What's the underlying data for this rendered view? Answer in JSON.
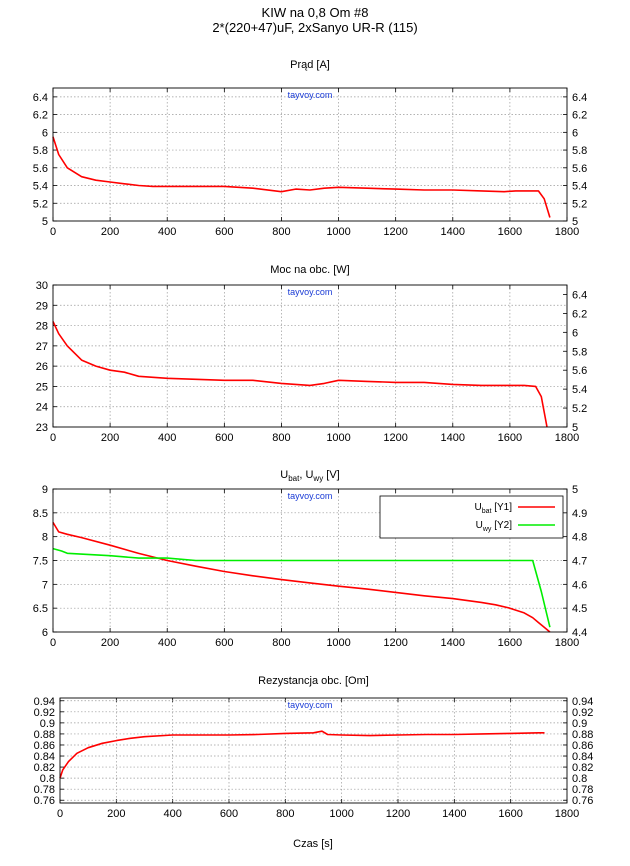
{
  "header": {
    "title": "KIW na 0,8 Om   #8",
    "subtitle": "2*(220+47)uF, 2xSanyo UR-R (115)"
  },
  "watermark": "tayvoy.com",
  "x_label": "Czas [s]",
  "colors": {
    "red": "#ff0000",
    "green": "#00ee00",
    "grid": "#9a9a9a"
  },
  "chart_data": [
    {
      "type": "line",
      "title": "Prąd [A]",
      "xlim": [
        0,
        1800
      ],
      "x_ticks": [
        "0",
        "200",
        "400",
        "600",
        "800",
        "1000",
        "1200",
        "1400",
        "1600",
        "1800"
      ],
      "ylim": [
        5,
        6.5
      ],
      "y_ticks": [
        "5",
        "5.2",
        "5.4",
        "5.6",
        "5.8",
        "6",
        "6.2",
        "6.4"
      ],
      "y2lim": [
        5,
        6.5
      ],
      "y2_ticks": [
        "5",
        "5.2",
        "5.4",
        "5.6",
        "5.8",
        "6",
        "6.2",
        "6.4"
      ],
      "series": [
        {
          "name": "Prąd",
          "axis": "y1",
          "color": "#ff0000",
          "x": [
            0,
            20,
            50,
            100,
            150,
            200,
            250,
            300,
            350,
            400,
            500,
            600,
            700,
            800,
            850,
            900,
            950,
            1000,
            1100,
            1200,
            1300,
            1400,
            1500,
            1580,
            1620,
            1700,
            1720,
            1740
          ],
          "y": [
            5.95,
            5.75,
            5.6,
            5.5,
            5.46,
            5.44,
            5.42,
            5.4,
            5.39,
            5.39,
            5.39,
            5.39,
            5.37,
            5.33,
            5.36,
            5.35,
            5.37,
            5.38,
            5.37,
            5.36,
            5.35,
            5.35,
            5.34,
            5.33,
            5.34,
            5.34,
            5.25,
            5.04
          ]
        }
      ]
    },
    {
      "type": "line",
      "title": "Moc na obc. [W]",
      "xlim": [
        0,
        1800
      ],
      "x_ticks": [
        "0",
        "200",
        "400",
        "600",
        "800",
        "1000",
        "1200",
        "1400",
        "1600",
        "1800"
      ],
      "ylim": [
        23,
        30
      ],
      "y_ticks": [
        "23",
        "24",
        "25",
        "26",
        "27",
        "28",
        "29",
        "30"
      ],
      "y2lim": [
        5,
        6.5
      ],
      "y2_ticks": [
        "5",
        "5.2",
        "5.4",
        "5.6",
        "5.8",
        "6",
        "6.2",
        "6.4"
      ],
      "series": [
        {
          "name": "Moc",
          "axis": "y1",
          "color": "#ff0000",
          "x": [
            0,
            20,
            50,
            100,
            150,
            200,
            250,
            300,
            350,
            400,
            500,
            600,
            700,
            800,
            850,
            900,
            950,
            1000,
            1100,
            1200,
            1300,
            1400,
            1500,
            1600,
            1650,
            1690,
            1710,
            1730
          ],
          "y": [
            28.2,
            27.6,
            27.0,
            26.3,
            26.0,
            25.8,
            25.7,
            25.5,
            25.45,
            25.4,
            25.35,
            25.3,
            25.3,
            25.15,
            25.1,
            25.05,
            25.15,
            25.3,
            25.25,
            25.2,
            25.2,
            25.1,
            25.05,
            25.05,
            25.05,
            25.0,
            24.5,
            23.0
          ]
        }
      ]
    },
    {
      "type": "line",
      "title_main": "U",
      "title_sub1": "bat",
      "title_mid": ", U",
      "title_sub2": "wy",
      "title_end": " [V]",
      "xlim": [
        0,
        1800
      ],
      "x_ticks": [
        "0",
        "200",
        "400",
        "600",
        "800",
        "1000",
        "1200",
        "1400",
        "1600",
        "1800"
      ],
      "ylim": [
        6,
        9
      ],
      "y_ticks": [
        "6",
        "6.5",
        "7",
        "7.5",
        "8",
        "8.5",
        "9"
      ],
      "y2lim": [
        4.4,
        5.0
      ],
      "y2_ticks": [
        "4.4",
        "4.5",
        "4.6",
        "4.7",
        "4.8",
        "4.9",
        "5"
      ],
      "legend": [
        {
          "main": "U",
          "sub": "bat",
          "suffix": " [Y1]",
          "color": "#ff0000"
        },
        {
          "main": "U",
          "sub": "wy",
          "suffix": " [Y2]",
          "color": "#00ee00"
        }
      ],
      "series": [
        {
          "name": "Ubat",
          "axis": "y1",
          "color": "#ff0000",
          "x": [
            0,
            20,
            50,
            100,
            200,
            300,
            400,
            500,
            600,
            700,
            800,
            900,
            1000,
            1100,
            1200,
            1300,
            1400,
            1500,
            1550,
            1600,
            1650,
            1680,
            1700,
            1720,
            1740
          ],
          "y": [
            8.3,
            8.1,
            8.05,
            7.98,
            7.82,
            7.65,
            7.5,
            7.38,
            7.27,
            7.18,
            7.1,
            7.03,
            6.96,
            6.9,
            6.83,
            6.76,
            6.7,
            6.62,
            6.57,
            6.5,
            6.4,
            6.3,
            6.2,
            6.1,
            6.0
          ]
        },
        {
          "name": "Uwy",
          "axis": "y2",
          "color": "#00ee00",
          "x": [
            0,
            30,
            50,
            200,
            300,
            400,
            500,
            700,
            800,
            1000,
            1200,
            1400,
            1600,
            1680,
            1710,
            1740
          ],
          "y": [
            4.75,
            4.74,
            4.73,
            4.72,
            4.71,
            4.71,
            4.7,
            4.7,
            4.7,
            4.7,
            4.7,
            4.7,
            4.7,
            4.7,
            4.57,
            4.42
          ]
        }
      ]
    },
    {
      "type": "line",
      "title": "Rezystancja obc. [Om]",
      "xlim": [
        0,
        1800
      ],
      "x_ticks": [
        "0",
        "200",
        "400",
        "600",
        "800",
        "1000",
        "1200",
        "1400",
        "1600",
        "1800"
      ],
      "ylim": [
        0.755,
        0.945
      ],
      "y_ticks": [
        "0.76",
        "0.78",
        "0.8",
        "0.82",
        "0.84",
        "0.86",
        "0.88",
        "0.9",
        "0.92",
        "0.94"
      ],
      "y2lim": [
        0.755,
        0.945
      ],
      "y2_ticks": [
        "0.76",
        "0.78",
        "0.8",
        "0.82",
        "0.84",
        "0.86",
        "0.88",
        "0.9",
        "0.92",
        "0.94"
      ],
      "series": [
        {
          "name": "Rezystancja",
          "axis": "y1",
          "color": "#ff0000",
          "x": [
            0,
            10,
            30,
            60,
            100,
            150,
            200,
            250,
            300,
            400,
            500,
            600,
            700,
            800,
            900,
            930,
            950,
            1000,
            1100,
            1200,
            1300,
            1400,
            1500,
            1600,
            1700,
            1720
          ],
          "y": [
            0.8,
            0.815,
            0.83,
            0.845,
            0.855,
            0.863,
            0.868,
            0.872,
            0.875,
            0.878,
            0.878,
            0.878,
            0.879,
            0.881,
            0.882,
            0.885,
            0.879,
            0.878,
            0.877,
            0.878,
            0.879,
            0.879,
            0.88,
            0.881,
            0.882,
            0.882
          ]
        }
      ]
    }
  ]
}
